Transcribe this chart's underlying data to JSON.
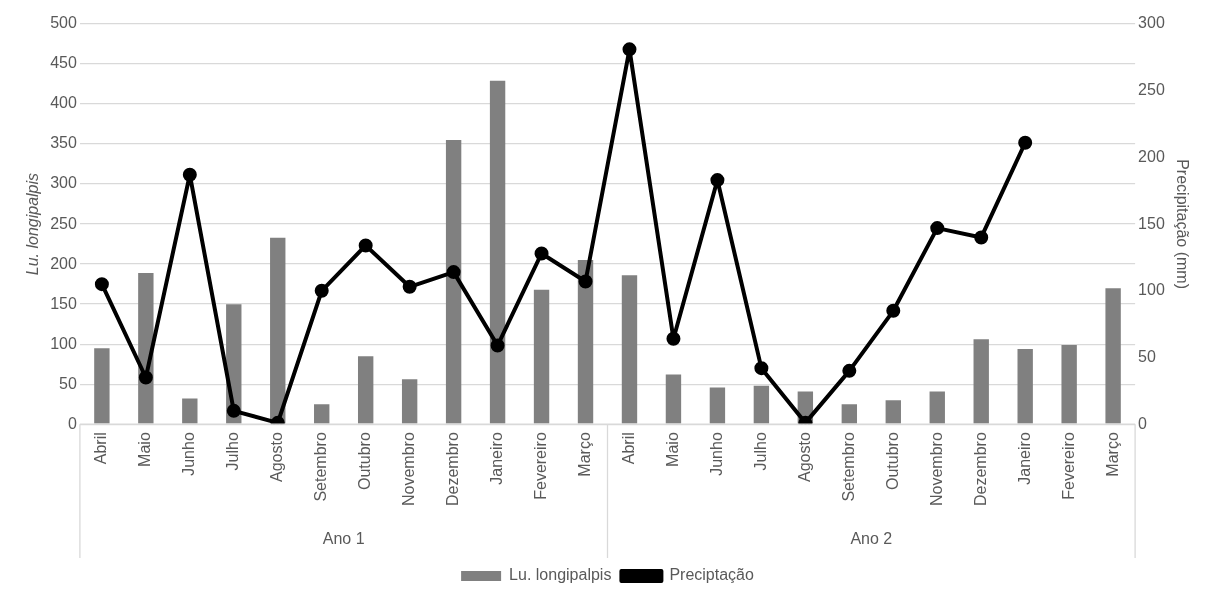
{
  "chart_data": {
    "type": "bar",
    "ylabel": "Lu. longipalpis",
    "y2label": "Precipitação (mm)",
    "categories": [
      "Abril",
      "Maio",
      "Junho",
      "Julho",
      "Agosto",
      "Setembro",
      "Outubro",
      "Novembro",
      "Dezembro",
      "Janeiro",
      "Fevereiro",
      "Março",
      "Abril",
      "Maio",
      "Junho",
      "Julho",
      "Agosto",
      "Setembro",
      "Outubro",
      "Novembro",
      "Dezembro",
      "Janeiro",
      "Fevereiro",
      "Março"
    ],
    "series": [
      {
        "name": "Lu. longipalpis",
        "color": "#808080",
        "values": [
          95,
          189,
          32,
          150,
          233,
          25,
          85,
          56,
          355,
          429,
          168,
          205,
          186,
          62,
          46,
          48,
          41,
          25,
          30,
          41,
          106,
          94,
          99,
          170
        ]
      },
      {
        "name": "Preciptação",
        "type": "line",
        "axis": "y2",
        "color": "#000000",
        "values": [
          105,
          35,
          187,
          10,
          1,
          100,
          134,
          103,
          114,
          59,
          128,
          107,
          281,
          64,
          183,
          42,
          1,
          40,
          85,
          147,
          140,
          211,
          null,
          null
        ]
      }
    ],
    "annotations": [
      "Ano 1",
      "Ano 2"
    ],
    "ylim": [
      0,
      500
    ],
    "yticks": [
      0,
      50,
      100,
      150,
      200,
      250,
      300,
      350,
      400,
      450,
      500
    ],
    "y2lim": [
      0,
      300
    ],
    "y2ticks": [
      0,
      50,
      100,
      150,
      200,
      250,
      300
    ],
    "grid": "y",
    "legend": "bottom",
    "marker": "circle",
    "line_style": "solid"
  }
}
